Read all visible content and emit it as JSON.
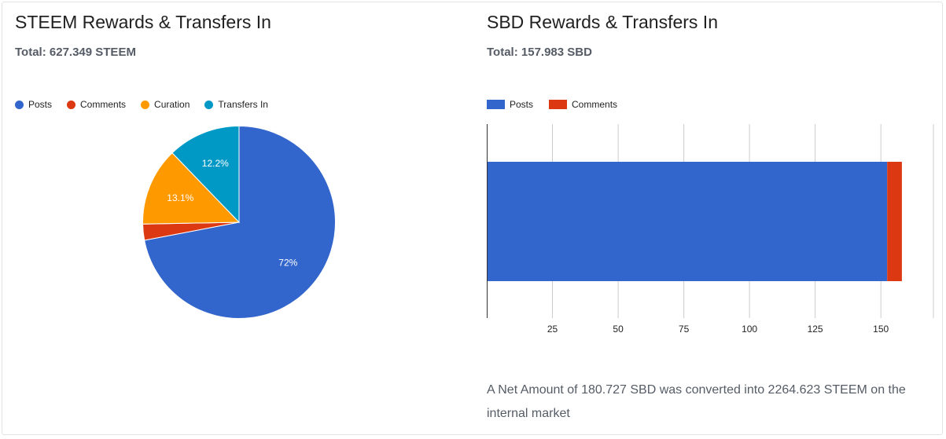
{
  "steem_panel": {
    "title": "STEEM Rewards & Transfers In",
    "total": "Total: 627.349 STEEM"
  },
  "sbd_panel": {
    "title": "SBD Rewards & Transfers In",
    "total": "Total: 157.983 SBD",
    "note": "A Net Amount of 180.727 SBD was converted into 2264.623 STEEM on the internal market"
  },
  "colors": {
    "posts": "#3366cc",
    "comments": "#dc3912",
    "curation": "#ff9900",
    "transfers_in": "#0099c6"
  },
  "chart_data": [
    {
      "type": "pie",
      "title": "STEEM Rewards & Transfers In",
      "legend_position": "top-left",
      "slices": [
        {
          "label": "Posts",
          "percent": 72.0,
          "display": "72%",
          "color": "#3366cc"
        },
        {
          "label": "Comments",
          "percent": 2.7,
          "display": "",
          "color": "#dc3912"
        },
        {
          "label": "Curation",
          "percent": 13.1,
          "display": "13.1%",
          "color": "#ff9900"
        },
        {
          "label": "Transfers In",
          "percent": 12.2,
          "display": "12.2%",
          "color": "#0099c6"
        }
      ]
    },
    {
      "type": "bar",
      "orientation": "horizontal",
      "stacked": true,
      "title": "SBD Rewards & Transfers In",
      "legend_position": "top-left",
      "xlim": [
        0,
        170
      ],
      "xticks": [
        25,
        50,
        75,
        100,
        125,
        150
      ],
      "grid": true,
      "series": [
        {
          "name": "Posts",
          "values": [
            152.4
          ],
          "color": "#3366cc"
        },
        {
          "name": "Comments",
          "values": [
            5.6
          ],
          "color": "#dc3912"
        }
      ]
    }
  ]
}
